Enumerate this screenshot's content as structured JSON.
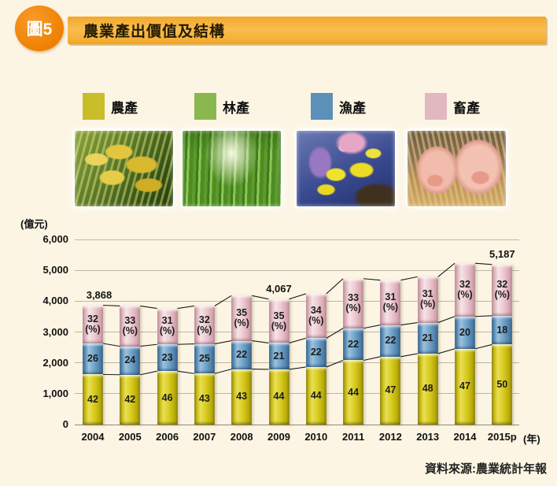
{
  "header": {
    "badge": "圖5",
    "title": "農業產出價值及結構"
  },
  "legend": {
    "items": [
      {
        "label": "農產",
        "color": "#c9bd2a"
      },
      {
        "label": "林產",
        "color": "#8ab84e"
      },
      {
        "label": "漁產",
        "color": "#5b90b8"
      },
      {
        "label": "畜產",
        "color": "#e2b8c0"
      }
    ]
  },
  "photos": [
    {
      "name": "rice-crops"
    },
    {
      "name": "bamboo-forest"
    },
    {
      "name": "tropical-fish"
    },
    {
      "name": "piglets"
    }
  ],
  "chart_data": {
    "type": "bar",
    "subtype": "stacked-column-with-percent-labels",
    "title": "農業產出價值及結構",
    "unit_label": "(億元)",
    "x_suffix_label": "(年)",
    "categories": [
      "2004",
      "2005",
      "2006",
      "2007",
      "2008",
      "2009",
      "2010",
      "2011",
      "2012",
      "2013",
      "2014",
      "2015p"
    ],
    "series": [
      {
        "name": "農產",
        "role": "crop",
        "pct": [
          42,
          42,
          46,
          43,
          43,
          44,
          44,
          44,
          47,
          48,
          47,
          50
        ]
      },
      {
        "name": "漁產",
        "role": "fishery",
        "pct": [
          26,
          24,
          23,
          25,
          22,
          21,
          22,
          22,
          22,
          21,
          20,
          18
        ]
      },
      {
        "name": "畜產",
        "role": "livestock",
        "pct": [
          32,
          33,
          31,
          32,
          35,
          35,
          34,
          33,
          31,
          31,
          32,
          32
        ]
      }
    ],
    "totals": [
      3868,
      3845,
      3765,
      3845,
      4180,
      4067,
      4240,
      4730,
      4680,
      4790,
      5230,
      5187
    ],
    "total_annotations": [
      {
        "index": 0,
        "label": "3,868",
        "dx": 8
      },
      {
        "index": 5,
        "label": "4,067",
        "dx": 0
      },
      {
        "index": 11,
        "label": "5,187",
        "dx": 0
      }
    ],
    "ylim": [
      0,
      6000
    ],
    "yticks": [
      {
        "value": 6000,
        "label": "6,000"
      },
      {
        "value": 5000,
        "label": "5,000"
      },
      {
        "value": 4000,
        "label": "4,000"
      },
      {
        "value": 3000,
        "label": "3,000"
      },
      {
        "value": 2000,
        "label": "2,000"
      },
      {
        "value": 1000,
        "label": "1,000"
      },
      {
        "value": 0,
        "label": "0"
      }
    ],
    "grid": true,
    "legend_position": "top"
  },
  "colors": {
    "background": "#fcf5e3",
    "header_badge": "#ee8000",
    "header_bar": "#f6b43c",
    "crop_bar": "#d8cb1e",
    "fishery_bar": "#6fa3c9",
    "livestock_bar": "#eccad1",
    "series_line": "#1a1a1a",
    "grid_line": "#bdb6a4"
  },
  "source": "資料來源:農業統計年報"
}
